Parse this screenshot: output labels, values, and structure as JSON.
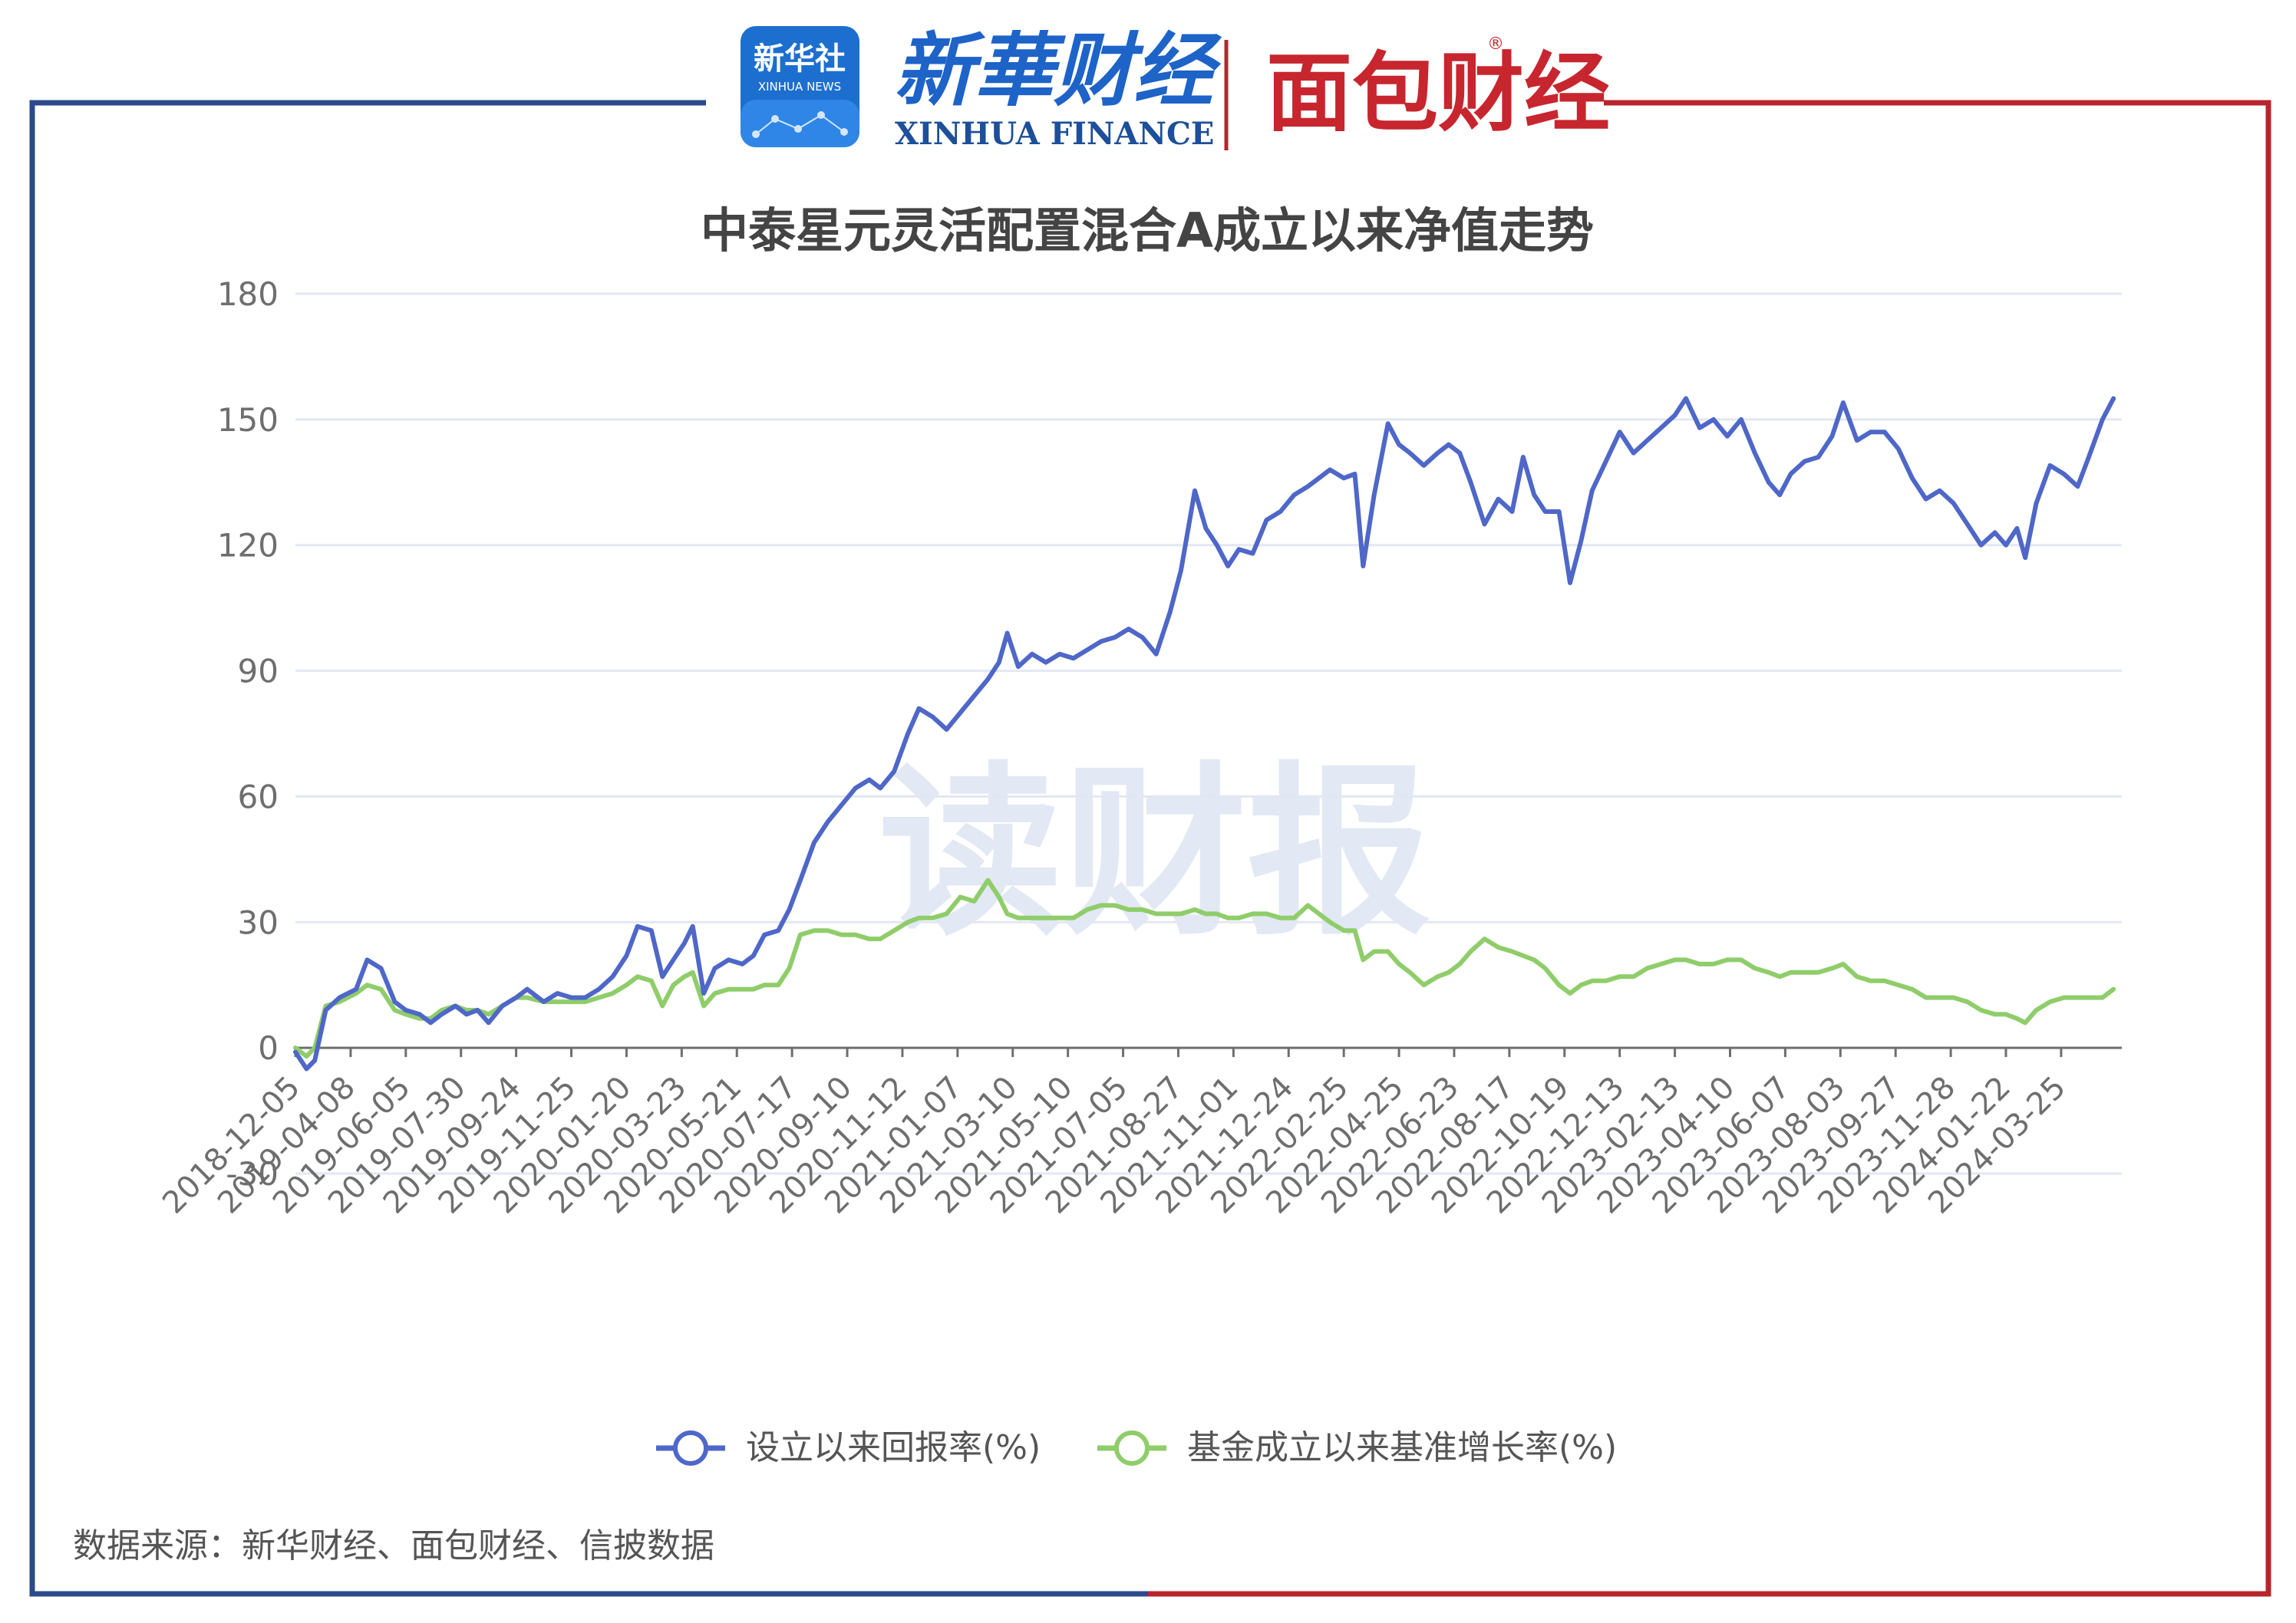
{
  "branding": {
    "xinhua_news_badge": "新华社",
    "xinhua_news_sub": "XINHUA NEWS",
    "xinhua_finance_cn": "新華财经",
    "xinhua_finance_en": "XINHUA FINANCE",
    "mianbao_logo": "面包财经",
    "watermark": "读财报",
    "registered_mark": "®"
  },
  "colors": {
    "frame_left": "#2b4a8b",
    "frame_right": "#b8242c",
    "series_return": "#4e67c8",
    "series_benchmark": "#8fcd6a",
    "grid": "#e3e7f3",
    "axis_text": "#6e6e6e",
    "title_text": "#444444",
    "watermark": "#dfe6f3"
  },
  "source_note": "数据来源：新华财经、面包财经、信披数据",
  "chart_data": {
    "type": "line",
    "title": "中泰星元灵活配置混合A成立以来净值走势",
    "xlabel": "",
    "ylabel": "",
    "ylim": [
      -30,
      180
    ],
    "yticks": [
      -30,
      0,
      30,
      60,
      90,
      120,
      150,
      180
    ],
    "grid": true,
    "legend": "bottom-center",
    "categories": [
      "2018-12-05",
      "2019-04-08",
      "2019-06-05",
      "2019-07-30",
      "2019-09-24",
      "2019-11-25",
      "2020-01-20",
      "2020-03-23",
      "2020-05-21",
      "2020-07-17",
      "2020-09-10",
      "2020-11-12",
      "2021-01-07",
      "2021-03-10",
      "2021-05-10",
      "2021-07-05",
      "2021-08-27",
      "2021-11-01",
      "2021-12-24",
      "2022-02-25",
      "2022-04-25",
      "2022-06-23",
      "2022-08-17",
      "2022-10-19",
      "2022-12-13",
      "2023-02-13",
      "2023-04-10",
      "2023-06-07",
      "2023-08-03",
      "2023-09-27",
      "2023-11-28",
      "2024-01-22",
      "2024-03-25"
    ],
    "series": [
      {
        "name": "设立以来回报率(%)",
        "color": "#4e67c8",
        "points": [
          [
            0,
            -1
          ],
          [
            0.2,
            -5
          ],
          [
            0.35,
            -3
          ],
          [
            0.55,
            9
          ],
          [
            0.8,
            12
          ],
          [
            1.1,
            14
          ],
          [
            1.3,
            21
          ],
          [
            1.55,
            19
          ],
          [
            1.8,
            11
          ],
          [
            2.0,
            9
          ],
          [
            2.25,
            8
          ],
          [
            2.45,
            6
          ],
          [
            2.65,
            8
          ],
          [
            2.9,
            10
          ],
          [
            3.1,
            8
          ],
          [
            3.3,
            9
          ],
          [
            3.5,
            6
          ],
          [
            3.75,
            10
          ],
          [
            4.0,
            12
          ],
          [
            4.2,
            14
          ],
          [
            4.5,
            11
          ],
          [
            4.75,
            13
          ],
          [
            5.0,
            12
          ],
          [
            5.25,
            12
          ],
          [
            5.5,
            14
          ],
          [
            5.75,
            17
          ],
          [
            6.0,
            22
          ],
          [
            6.2,
            29
          ],
          [
            6.45,
            28
          ],
          [
            6.65,
            17
          ],
          [
            6.85,
            21
          ],
          [
            7.05,
            25
          ],
          [
            7.2,
            29
          ],
          [
            7.4,
            13
          ],
          [
            7.6,
            19
          ],
          [
            7.85,
            21
          ],
          [
            8.1,
            20
          ],
          [
            8.3,
            22
          ],
          [
            8.5,
            27
          ],
          [
            8.75,
            28
          ],
          [
            8.95,
            33
          ],
          [
            9.15,
            40
          ],
          [
            9.4,
            49
          ],
          [
            9.65,
            54
          ],
          [
            9.9,
            58
          ],
          [
            10.15,
            62
          ],
          [
            10.4,
            64
          ],
          [
            10.6,
            62
          ],
          [
            10.85,
            66
          ],
          [
            11.1,
            75
          ],
          [
            11.3,
            81
          ],
          [
            11.55,
            79
          ],
          [
            11.8,
            76
          ],
          [
            12.05,
            80
          ],
          [
            12.3,
            84
          ],
          [
            12.55,
            88
          ],
          [
            12.75,
            92
          ],
          [
            12.9,
            99
          ],
          [
            13.1,
            91
          ],
          [
            13.35,
            94
          ],
          [
            13.6,
            92
          ],
          [
            13.85,
            94
          ],
          [
            14.1,
            93
          ],
          [
            14.35,
            95
          ],
          [
            14.6,
            97
          ],
          [
            14.85,
            98
          ],
          [
            15.1,
            100
          ],
          [
            15.35,
            98
          ],
          [
            15.6,
            94
          ],
          [
            15.85,
            104
          ],
          [
            16.05,
            114
          ],
          [
            16.3,
            133
          ],
          [
            16.5,
            124
          ],
          [
            16.7,
            120
          ],
          [
            16.9,
            115
          ],
          [
            17.1,
            119
          ],
          [
            17.35,
            118
          ],
          [
            17.6,
            126
          ],
          [
            17.85,
            128
          ],
          [
            18.1,
            132
          ],
          [
            18.35,
            134
          ],
          [
            18.55,
            136
          ],
          [
            18.75,
            138
          ],
          [
            19.0,
            136
          ],
          [
            19.2,
            137
          ],
          [
            19.35,
            115
          ],
          [
            19.55,
            132
          ],
          [
            19.8,
            149
          ],
          [
            20.0,
            144
          ],
          [
            20.2,
            142
          ],
          [
            20.45,
            139
          ],
          [
            20.7,
            142
          ],
          [
            20.9,
            144
          ],
          [
            21.1,
            142
          ],
          [
            21.3,
            135
          ],
          [
            21.55,
            125
          ],
          [
            21.8,
            131
          ],
          [
            22.05,
            128
          ],
          [
            22.25,
            141
          ],
          [
            22.45,
            132
          ],
          [
            22.65,
            128
          ],
          [
            22.9,
            128
          ],
          [
            23.1,
            111
          ],
          [
            23.3,
            121
          ],
          [
            23.5,
            133
          ],
          [
            23.75,
            140
          ],
          [
            24.0,
            147
          ],
          [
            24.25,
            142
          ],
          [
            24.5,
            145
          ],
          [
            24.75,
            148
          ],
          [
            25.0,
            151
          ],
          [
            25.2,
            155
          ],
          [
            25.45,
            148
          ],
          [
            25.7,
            150
          ],
          [
            25.95,
            146
          ],
          [
            26.2,
            150
          ],
          [
            26.45,
            142
          ],
          [
            26.7,
            135
          ],
          [
            26.9,
            132
          ],
          [
            27.1,
            137
          ],
          [
            27.35,
            140
          ],
          [
            27.6,
            141
          ],
          [
            27.85,
            146
          ],
          [
            28.05,
            154
          ],
          [
            28.3,
            145
          ],
          [
            28.55,
            147
          ],
          [
            28.8,
            147
          ],
          [
            29.05,
            143
          ],
          [
            29.3,
            136
          ],
          [
            29.55,
            131
          ],
          [
            29.8,
            133
          ],
          [
            30.05,
            130
          ],
          [
            30.3,
            125
          ],
          [
            30.55,
            120
          ],
          [
            30.8,
            123
          ],
          [
            31.0,
            120
          ],
          [
            31.2,
            124
          ],
          [
            31.35,
            117
          ],
          [
            31.55,
            130
          ],
          [
            31.8,
            139
          ],
          [
            32.05,
            137
          ],
          [
            32.3,
            134
          ],
          [
            32.5,
            141
          ],
          [
            32.75,
            150
          ],
          [
            32.95,
            155
          ]
        ]
      },
      {
        "name": "基金成立以来基准增长率(%)",
        "color": "#8fcd6a",
        "points": [
          [
            0,
            0
          ],
          [
            0.2,
            -2
          ],
          [
            0.35,
            0
          ],
          [
            0.55,
            10
          ],
          [
            0.8,
            11
          ],
          [
            1.1,
            13
          ],
          [
            1.3,
            15
          ],
          [
            1.55,
            14
          ],
          [
            1.8,
            9
          ],
          [
            2.0,
            8
          ],
          [
            2.25,
            7
          ],
          [
            2.45,
            7
          ],
          [
            2.65,
            9
          ],
          [
            2.9,
            10
          ],
          [
            3.1,
            9
          ],
          [
            3.3,
            9
          ],
          [
            3.5,
            8
          ],
          [
            3.75,
            10
          ],
          [
            4.0,
            12
          ],
          [
            4.2,
            12
          ],
          [
            4.5,
            11
          ],
          [
            4.75,
            11
          ],
          [
            5.0,
            11
          ],
          [
            5.25,
            11
          ],
          [
            5.5,
            12
          ],
          [
            5.75,
            13
          ],
          [
            6.0,
            15
          ],
          [
            6.2,
            17
          ],
          [
            6.45,
            16
          ],
          [
            6.65,
            10
          ],
          [
            6.85,
            15
          ],
          [
            7.05,
            17
          ],
          [
            7.2,
            18
          ],
          [
            7.4,
            10
          ],
          [
            7.6,
            13
          ],
          [
            7.85,
            14
          ],
          [
            8.1,
            14
          ],
          [
            8.3,
            14
          ],
          [
            8.5,
            15
          ],
          [
            8.75,
            15
          ],
          [
            8.95,
            19
          ],
          [
            9.15,
            27
          ],
          [
            9.4,
            28
          ],
          [
            9.65,
            28
          ],
          [
            9.9,
            27
          ],
          [
            10.15,
            27
          ],
          [
            10.4,
            26
          ],
          [
            10.6,
            26
          ],
          [
            10.85,
            28
          ],
          [
            11.1,
            30
          ],
          [
            11.3,
            31
          ],
          [
            11.55,
            31
          ],
          [
            11.8,
            32
          ],
          [
            12.05,
            36
          ],
          [
            12.3,
            35
          ],
          [
            12.55,
            40
          ],
          [
            12.75,
            36
          ],
          [
            12.9,
            32
          ],
          [
            13.1,
            31
          ],
          [
            13.35,
            31
          ],
          [
            13.6,
            31
          ],
          [
            13.85,
            31
          ],
          [
            14.1,
            31
          ],
          [
            14.35,
            33
          ],
          [
            14.6,
            34
          ],
          [
            14.85,
            34
          ],
          [
            15.1,
            33
          ],
          [
            15.35,
            33
          ],
          [
            15.6,
            32
          ],
          [
            15.85,
            32
          ],
          [
            16.05,
            32
          ],
          [
            16.3,
            33
          ],
          [
            16.5,
            32
          ],
          [
            16.7,
            32
          ],
          [
            16.9,
            31
          ],
          [
            17.1,
            31
          ],
          [
            17.35,
            32
          ],
          [
            17.6,
            32
          ],
          [
            17.85,
            31
          ],
          [
            18.1,
            31
          ],
          [
            18.35,
            34
          ],
          [
            18.55,
            32
          ],
          [
            18.75,
            30
          ],
          [
            19.0,
            28
          ],
          [
            19.2,
            28
          ],
          [
            19.35,
            21
          ],
          [
            19.55,
            23
          ],
          [
            19.8,
            23
          ],
          [
            20.0,
            20
          ],
          [
            20.2,
            18
          ],
          [
            20.45,
            15
          ],
          [
            20.7,
            17
          ],
          [
            20.9,
            18
          ],
          [
            21.1,
            20
          ],
          [
            21.3,
            23
          ],
          [
            21.55,
            26
          ],
          [
            21.8,
            24
          ],
          [
            22.05,
            23
          ],
          [
            22.25,
            22
          ],
          [
            22.45,
            21
          ],
          [
            22.65,
            19
          ],
          [
            22.9,
            15
          ],
          [
            23.1,
            13
          ],
          [
            23.3,
            15
          ],
          [
            23.5,
            16
          ],
          [
            23.75,
            16
          ],
          [
            24.0,
            17
          ],
          [
            24.25,
            17
          ],
          [
            24.5,
            19
          ],
          [
            24.75,
            20
          ],
          [
            25.0,
            21
          ],
          [
            25.2,
            21
          ],
          [
            25.45,
            20
          ],
          [
            25.7,
            20
          ],
          [
            25.95,
            21
          ],
          [
            26.2,
            21
          ],
          [
            26.45,
            19
          ],
          [
            26.7,
            18
          ],
          [
            26.9,
            17
          ],
          [
            27.1,
            18
          ],
          [
            27.35,
            18
          ],
          [
            27.6,
            18
          ],
          [
            27.85,
            19
          ],
          [
            28.05,
            20
          ],
          [
            28.3,
            17
          ],
          [
            28.55,
            16
          ],
          [
            28.8,
            16
          ],
          [
            29.05,
            15
          ],
          [
            29.3,
            14
          ],
          [
            29.55,
            12
          ],
          [
            29.8,
            12
          ],
          [
            30.05,
            12
          ],
          [
            30.3,
            11
          ],
          [
            30.55,
            9
          ],
          [
            30.8,
            8
          ],
          [
            31.0,
            8
          ],
          [
            31.2,
            7
          ],
          [
            31.35,
            6
          ],
          [
            31.55,
            9
          ],
          [
            31.8,
            11
          ],
          [
            32.05,
            12
          ],
          [
            32.3,
            12
          ],
          [
            32.5,
            12
          ],
          [
            32.75,
            12
          ],
          [
            32.95,
            14
          ]
        ]
      }
    ]
  }
}
